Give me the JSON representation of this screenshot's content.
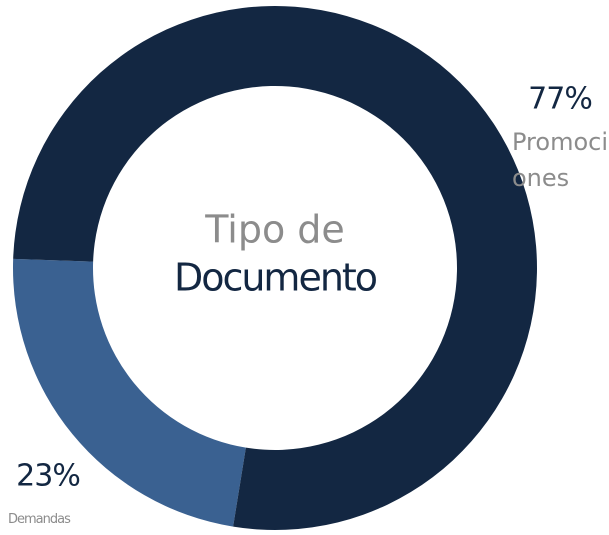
{
  "chart_data": {
    "type": "donut",
    "center_text": [
      "Tipo de",
      "Documento"
    ],
    "categories": [
      "Promociones",
      "Demandas"
    ],
    "values": [
      77,
      23
    ],
    "value_labels": [
      "77%",
      "23%"
    ],
    "colors": [
      "#132742",
      "#3a6191"
    ],
    "start_angle": 272
  }
}
